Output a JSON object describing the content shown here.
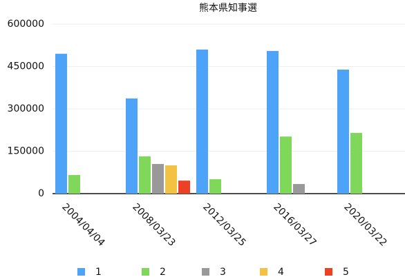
{
  "chart_data": {
    "type": "bar",
    "title": "熊本県知事選",
    "categories": [
      "2004/04/04",
      "2008/03/23",
      "2012/03/25",
      "2016/03/27",
      "2020/03/22"
    ],
    "series": [
      {
        "name": "1",
        "color": "#4da3f7",
        "values": [
          495000,
          337000,
          510000,
          505000,
          439000
        ]
      },
      {
        "name": "2",
        "color": "#80d85a",
        "values": [
          66000,
          132000,
          51000,
          202000,
          215000
        ]
      },
      {
        "name": "3",
        "color": "#999999",
        "values": [
          null,
          105000,
          null,
          34000,
          null
        ]
      },
      {
        "name": "4",
        "color": "#f4c243",
        "values": [
          null,
          100000,
          null,
          null,
          null
        ]
      },
      {
        "name": "5",
        "color": "#ec4125",
        "values": [
          null,
          46000,
          null,
          null,
          null
        ]
      }
    ],
    "ylim": [
      0,
      600000
    ],
    "yticks": [
      0,
      150000,
      300000,
      450000,
      600000
    ],
    "grid": true
  }
}
